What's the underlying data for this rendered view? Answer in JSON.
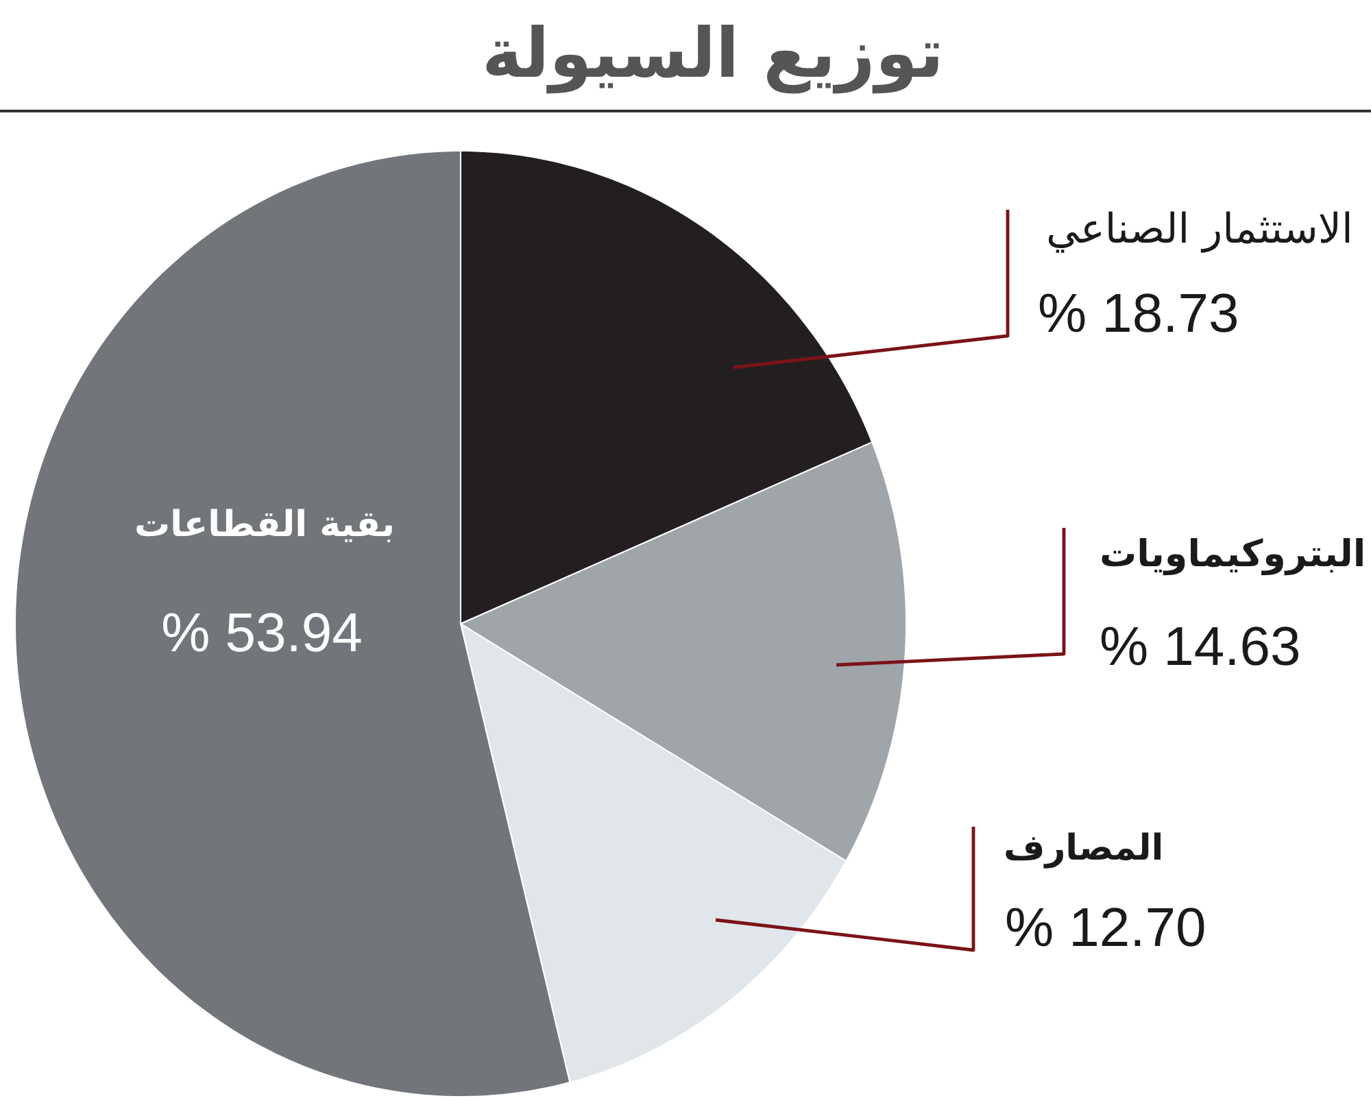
{
  "chart_data": {
    "type": "pie",
    "title": "توزيع السيولة",
    "categories": [
      "الاستثمار الصناعي",
      "البتروكيماويات",
      "المصارف",
      "بقية القطاعات"
    ],
    "values": [
      18.73,
      14.63,
      12.7,
      53.94
    ],
    "colors": [
      "#231f20",
      "#a0a5aa",
      "#e0e6ea",
      "#72767a"
    ],
    "value_labels": [
      "% 18.73",
      "% 14.63",
      "% 12.70",
      "% 53.94"
    ]
  }
}
